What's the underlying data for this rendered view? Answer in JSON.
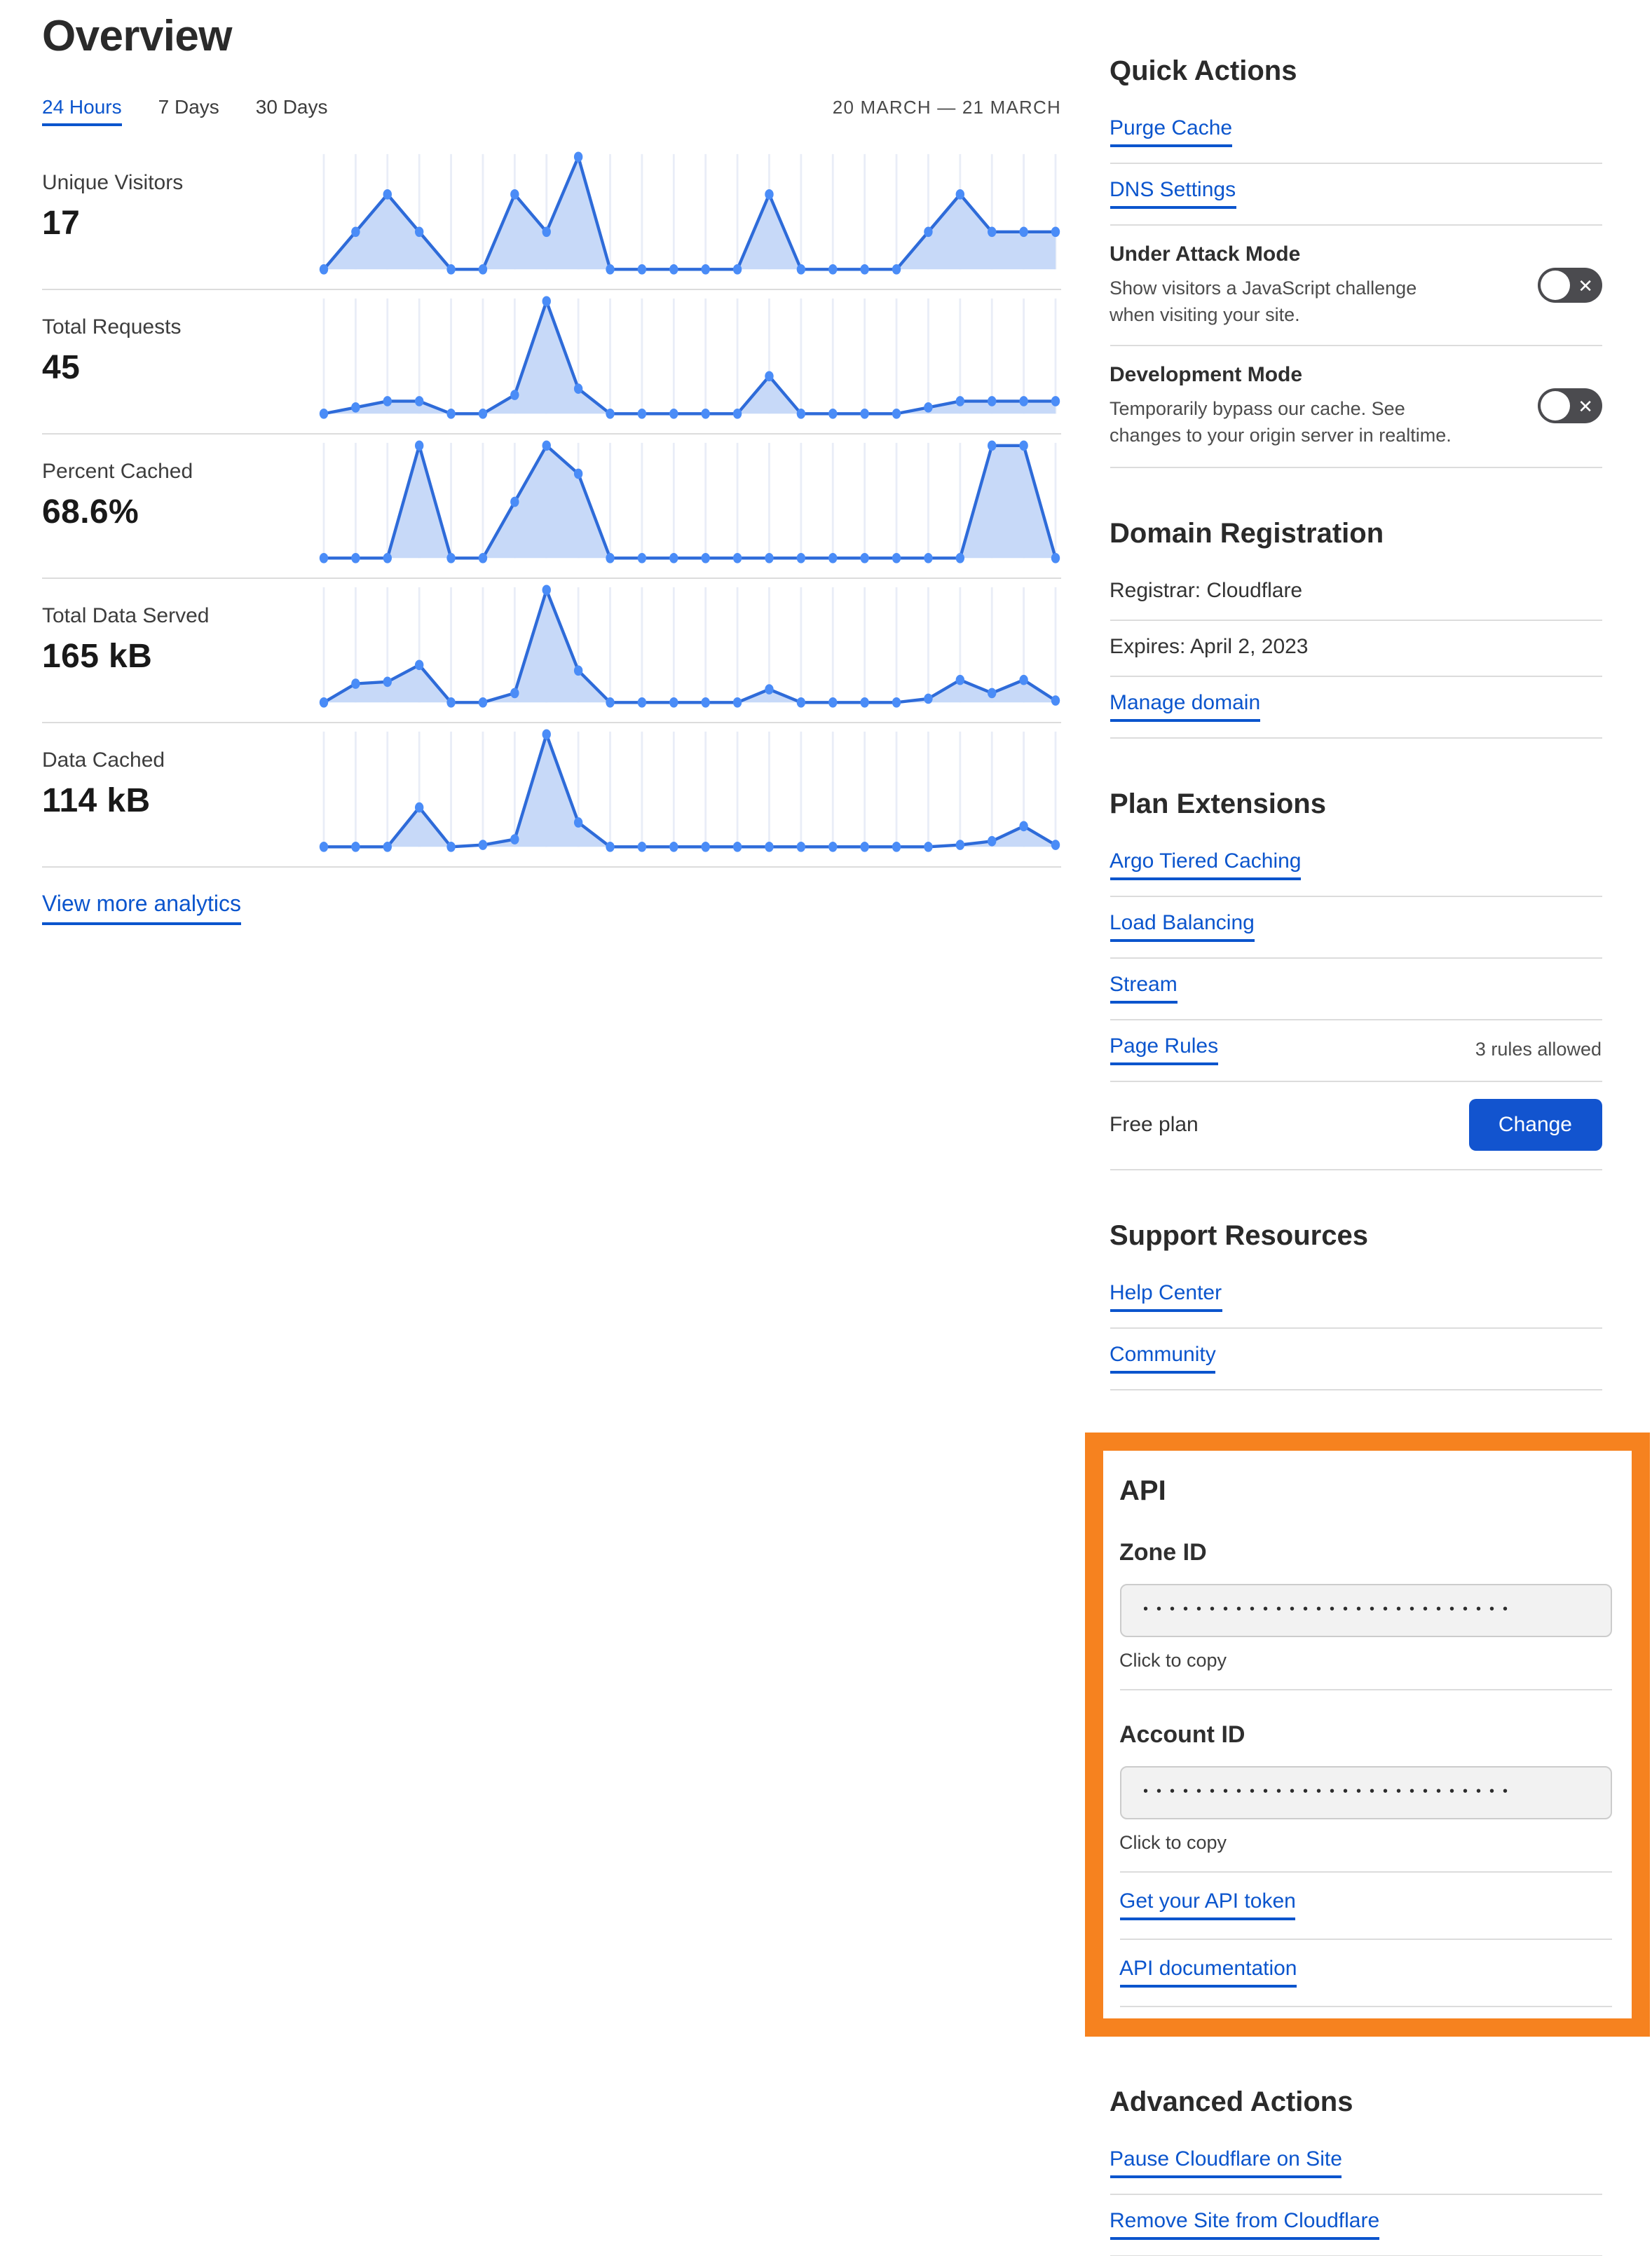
{
  "page_title": "Overview",
  "tabs": {
    "items": [
      "24 Hours",
      "7 Days",
      "30 Days"
    ],
    "active": "24 Hours"
  },
  "date_range": "20 MARCH — 21 MARCH",
  "view_more_label": "View more analytics",
  "chart_data": [
    {
      "type": "area",
      "title": "Unique Visitors",
      "display_value": "17",
      "x": "hours (24h, 20–21 March)",
      "ylim": [
        0,
        3
      ],
      "grid": "vertical",
      "values": [
        0,
        1,
        2,
        1,
        0,
        0,
        2,
        1,
        3,
        0,
        0,
        0,
        0,
        0,
        2,
        0,
        0,
        0,
        0,
        1,
        2,
        1,
        1,
        1
      ]
    },
    {
      "type": "area",
      "title": "Total Requests",
      "display_value": "45",
      "x": "hours (24h, 20–21 March)",
      "ylim": [
        0,
        18
      ],
      "grid": "vertical",
      "values": [
        0,
        1,
        2,
        2,
        0,
        0,
        3,
        18,
        4,
        0,
        0,
        0,
        0,
        0,
        6,
        0,
        0,
        0,
        0,
        1,
        2,
        2,
        2,
        2
      ]
    },
    {
      "type": "area",
      "title": "Percent Cached",
      "display_value": "68.6%",
      "x": "hours (24h, 20–21 March)",
      "ylim": [
        0,
        100
      ],
      "grid": "vertical",
      "values": [
        0,
        0,
        0,
        100,
        0,
        0,
        50,
        100,
        75,
        0,
        0,
        0,
        0,
        0,
        0,
        0,
        0,
        0,
        0,
        0,
        0,
        100,
        100,
        0
      ]
    },
    {
      "type": "area",
      "title": "Total Data Served",
      "display_value": "165 kB",
      "x": "hours (24h, 20–21 March)",
      "ylim": [
        0,
        60
      ],
      "grid": "vertical",
      "values": [
        0,
        10,
        11,
        20,
        0,
        0,
        5,
        60,
        17,
        0,
        0,
        0,
        0,
        0,
        7,
        0,
        0,
        0,
        0,
        2,
        12,
        5,
        12,
        1
      ]
    },
    {
      "type": "area",
      "title": "Data Cached",
      "display_value": "114 kB",
      "x": "hours (24h, 20–21 March)",
      "ylim": [
        0,
        60
      ],
      "grid": "vertical",
      "values": [
        0,
        0,
        0,
        21,
        0,
        1,
        4,
        60,
        13,
        0,
        0,
        0,
        0,
        0,
        0,
        0,
        0,
        0,
        0,
        0,
        1,
        3,
        11,
        1
      ]
    }
  ],
  "sidebar": {
    "quick_actions": {
      "title": "Quick Actions",
      "links": [
        {
          "label": "Purge Cache"
        },
        {
          "label": "DNS Settings"
        }
      ],
      "toggles": [
        {
          "label": "Under Attack Mode",
          "description": "Show visitors a JavaScript challenge when visiting your site.",
          "state": "off"
        },
        {
          "label": "Development Mode",
          "description": "Temporarily bypass our cache. See changes to your origin server in realtime.",
          "state": "off"
        }
      ]
    },
    "domain_registration": {
      "title": "Domain Registration",
      "registrar": "Registrar: Cloudflare",
      "expires": "Expires: April 2, 2023",
      "manage_link": "Manage domain"
    },
    "plan_extensions": {
      "title": "Plan Extensions",
      "links": [
        "Argo Tiered Caching",
        "Load Balancing",
        "Stream"
      ],
      "page_rules": {
        "label": "Page Rules",
        "note": "3 rules allowed"
      },
      "plan": {
        "label": "Free plan",
        "button_label": "Change"
      }
    },
    "support": {
      "title": "Support Resources",
      "links": [
        "Help Center",
        "Community"
      ]
    },
    "api": {
      "title": "API",
      "zone_id_label": "Zone ID",
      "account_id_label": "Account ID",
      "masked_value": "••••••••••••••••••••••••••••",
      "click_to_copy": "Click to copy",
      "token_link": "Get your API token",
      "docs_link": "API documentation"
    },
    "advanced": {
      "title": "Advanced Actions",
      "links": [
        "Pause Cloudflare on Site",
        "Remove Site from Cloudflare"
      ]
    }
  },
  "colors": {
    "link_blue": "#0b55cd",
    "button_blue": "#1254cf",
    "highlight_orange": "#f6821f",
    "chart_line": "#2e6bd9",
    "chart_dot": "#4a8cf7",
    "chart_fill": "#c7d9f8",
    "chart_grid": "#e9edf7",
    "toggle_bg": "#4b4b4f"
  }
}
